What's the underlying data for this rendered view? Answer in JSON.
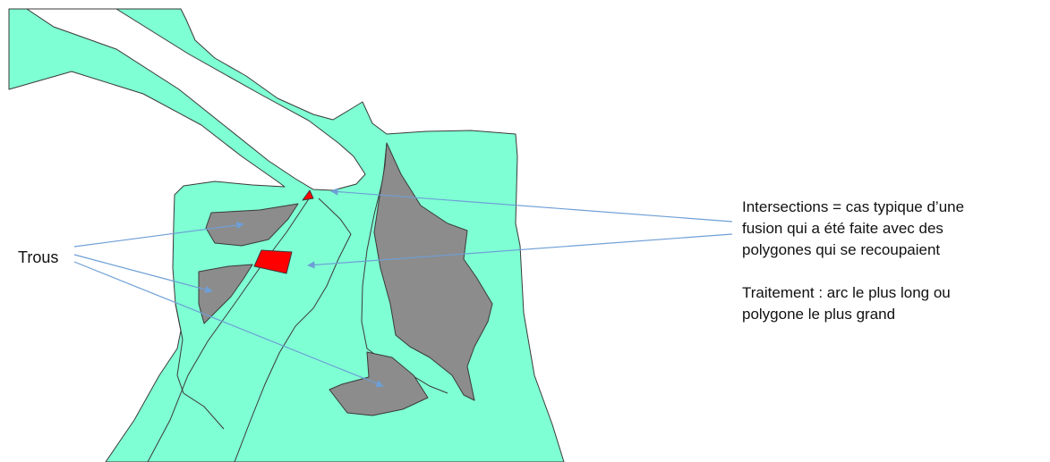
{
  "labels": {
    "holes": "Trous",
    "intersections_lines": [
      "Intersections = cas typique d’une",
      "fusion qui a été faite avec des",
      "polygones qui se recoupaient"
    ],
    "treatment_lines": [
      "Traitement : arc le plus long ou",
      "polygone le plus grand"
    ]
  },
  "colors": {
    "polygon_fill": "#7fffd4",
    "hole_fill": "#8c8c8c",
    "intersection_fill": "#ff0000",
    "arrow": "#6e9fd6",
    "outline": "#3a3a3a",
    "background": "#ffffff"
  },
  "legend": {
    "hole_count": 4,
    "intersection_count": 2
  }
}
